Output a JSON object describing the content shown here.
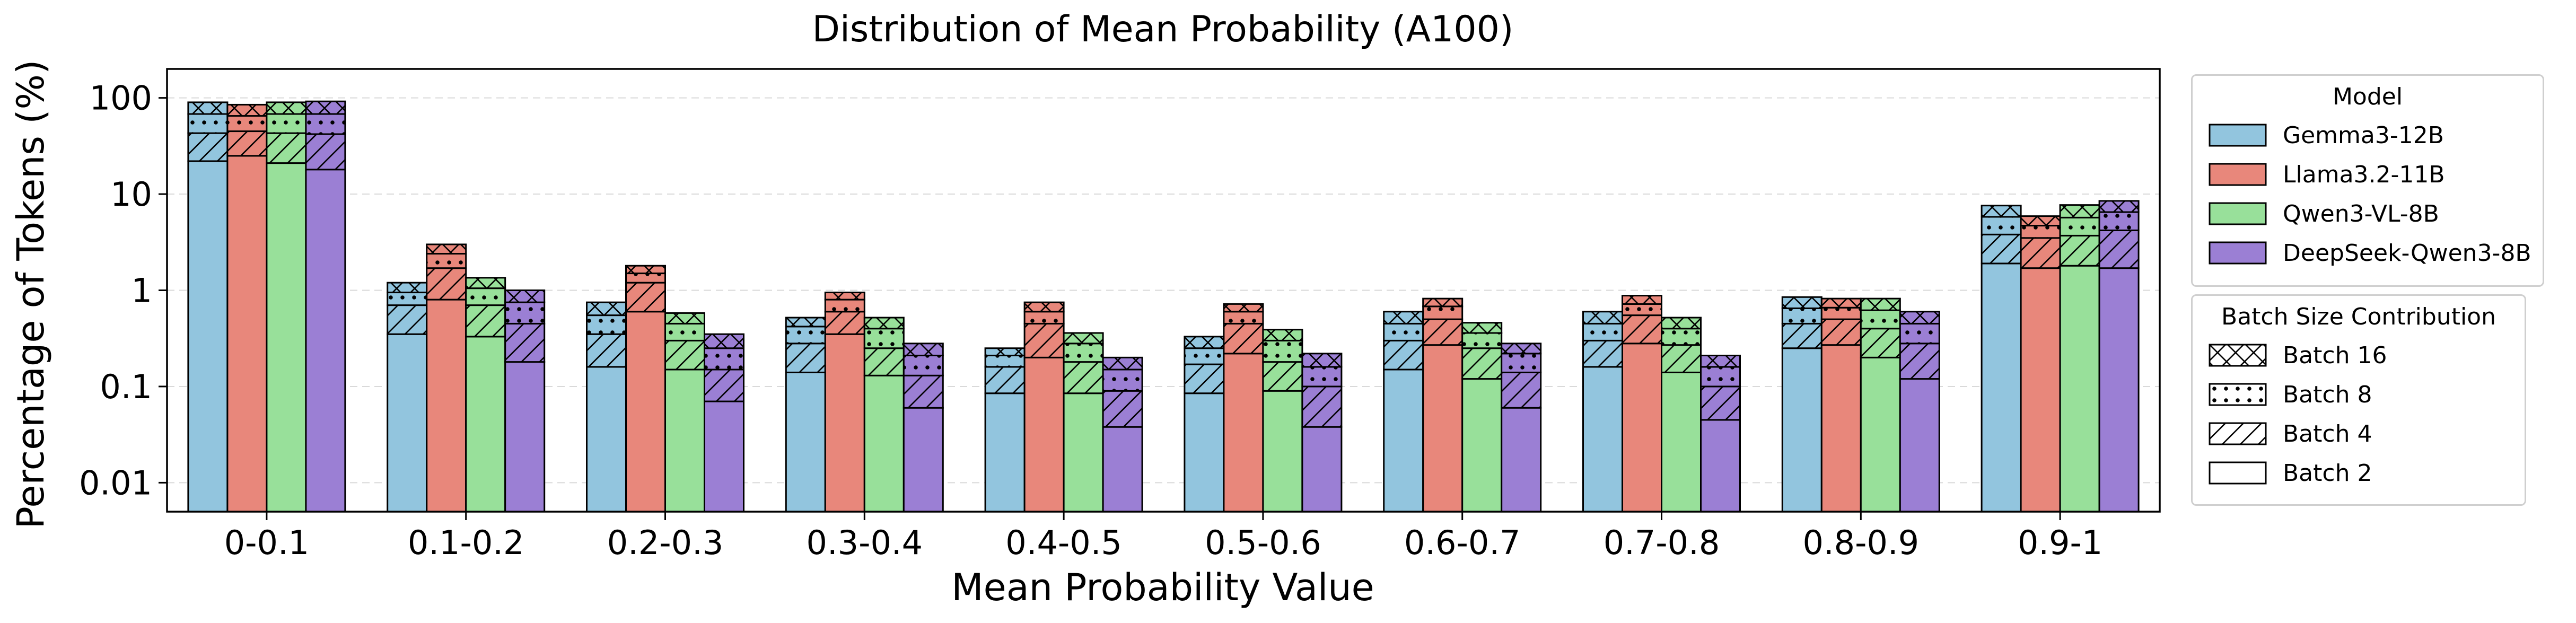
{
  "chart_data": {
    "type": "bar",
    "title": "Distribution of Mean Probability (A100)",
    "xlabel": "Mean Probability Value",
    "ylabel": "Percentage of Tokens (%)",
    "yscale": "log",
    "ylim": [
      0.005,
      200
    ],
    "yticks": [
      "0.01",
      "0.1",
      "1",
      "10",
      "100"
    ],
    "yticks_values": [
      0.01,
      0.1,
      1,
      10,
      100
    ],
    "categories": [
      "0-0.1",
      "0.1-0.2",
      "0.2-0.3",
      "0.3-0.4",
      "0.4-0.5",
      "0.5-0.6",
      "0.6-0.7",
      "0.7-0.8",
      "0.8-0.9",
      "0.9-1"
    ],
    "series": [
      {
        "name": "Gemma3-12B",
        "color": "#92c5de",
        "stack": [
          [
            22,
            43,
            68,
            90
          ],
          [
            0.35,
            0.7,
            0.95,
            1.2
          ],
          [
            0.16,
            0.35,
            0.55,
            0.75
          ],
          [
            0.14,
            0.28,
            0.42,
            0.52
          ],
          [
            0.085,
            0.16,
            0.21,
            0.25
          ],
          [
            0.085,
            0.17,
            0.25,
            0.33
          ],
          [
            0.15,
            0.3,
            0.45,
            0.6
          ],
          [
            0.16,
            0.3,
            0.45,
            0.6
          ],
          [
            0.25,
            0.45,
            0.65,
            0.85
          ],
          [
            1.9,
            3.8,
            5.8,
            7.6
          ]
        ]
      },
      {
        "name": "Llama3.2-11B",
        "color": "#e8877b",
        "stack": [
          [
            25,
            45,
            65,
            85
          ],
          [
            0.8,
            1.7,
            2.4,
            3.0
          ],
          [
            0.6,
            1.2,
            1.5,
            1.8
          ],
          [
            0.35,
            0.6,
            0.8,
            0.95
          ],
          [
            0.2,
            0.45,
            0.6,
            0.75
          ],
          [
            0.22,
            0.45,
            0.6,
            0.72
          ],
          [
            0.27,
            0.5,
            0.68,
            0.82
          ],
          [
            0.28,
            0.55,
            0.72,
            0.88
          ],
          [
            0.27,
            0.5,
            0.66,
            0.82
          ],
          [
            1.7,
            3.5,
            4.7,
            5.9
          ]
        ]
      },
      {
        "name": "Qwen3-VL-8B",
        "color": "#98e09a",
        "stack": [
          [
            21,
            43,
            68,
            90
          ],
          [
            0.33,
            0.7,
            1.05,
            1.35
          ],
          [
            0.15,
            0.3,
            0.45,
            0.58
          ],
          [
            0.13,
            0.25,
            0.4,
            0.52
          ],
          [
            0.085,
            0.18,
            0.28,
            0.36
          ],
          [
            0.09,
            0.18,
            0.3,
            0.39
          ],
          [
            0.12,
            0.25,
            0.36,
            0.46
          ],
          [
            0.14,
            0.27,
            0.4,
            0.52
          ],
          [
            0.2,
            0.4,
            0.62,
            0.82
          ],
          [
            1.8,
            3.7,
            5.7,
            7.7
          ]
        ]
      },
      {
        "name": "DeepSeek-Qwen3-8B",
        "color": "#9b7fd4",
        "stack": [
          [
            18,
            42,
            68,
            92
          ],
          [
            0.18,
            0.45,
            0.75,
            1.0
          ],
          [
            0.07,
            0.15,
            0.25,
            0.35
          ],
          [
            0.06,
            0.13,
            0.21,
            0.28
          ],
          [
            0.038,
            0.09,
            0.15,
            0.2
          ],
          [
            0.038,
            0.1,
            0.16,
            0.22
          ],
          [
            0.06,
            0.14,
            0.22,
            0.28
          ],
          [
            0.045,
            0.1,
            0.16,
            0.21
          ],
          [
            0.12,
            0.28,
            0.45,
            0.6
          ],
          [
            1.7,
            4.2,
            6.5,
            8.5
          ]
        ]
      }
    ],
    "stack_note": "stack = cumulative tops (%) of Batch 2, Batch 4, Batch 8, Batch 16 segments",
    "batch_hatches": [
      {
        "name": "Batch 16",
        "hatch": "cross"
      },
      {
        "name": "Batch 8",
        "hatch": "dots"
      },
      {
        "name": "Batch 4",
        "hatch": "diagonal"
      },
      {
        "name": "Batch 2",
        "hatch": "none"
      }
    ],
    "legends": {
      "model_title": "Model",
      "batch_title": "Batch Size Contribution"
    },
    "grid": "y dashed"
  }
}
